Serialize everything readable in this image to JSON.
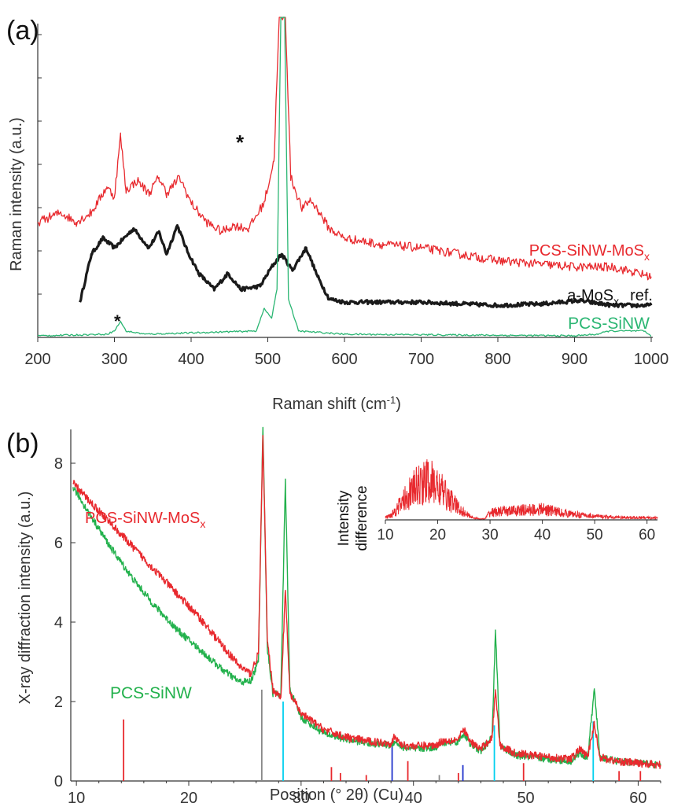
{
  "colors": {
    "red": "#e8292e",
    "black": "#1a1a1a",
    "green": "#2bb673",
    "green_b": "#22b14c",
    "cyan": "#00d0ee",
    "blue": "#2233cc",
    "gray": "#888888",
    "axis": "#333333"
  },
  "chart_data": [
    {
      "id": "a",
      "type": "line",
      "panel_label": "(a)",
      "xlabel": "Raman shift (cm",
      "xlabel_sup": "-1",
      "xlabel_end": ")",
      "ylabel": "Raman intensity (a.u.)",
      "xlim": [
        200,
        1000
      ],
      "ylim": [
        0,
        10
      ],
      "xticks": [
        200,
        300,
        400,
        500,
        600,
        700,
        800,
        900,
        1000
      ],
      "annotations": [
        "*",
        "*"
      ],
      "series": [
        {
          "name": "PCS-SiNW-MoS",
          "name_sub": "x",
          "color": "#e8292e",
          "points": [
            [
              200,
              3.6
            ],
            [
              230,
              3.9
            ],
            [
              250,
              3.6
            ],
            [
              270,
              3.9
            ],
            [
              290,
              4.7
            ],
            [
              300,
              4.4
            ],
            [
              308,
              6.3
            ],
            [
              315,
              4.6
            ],
            [
              330,
              4.9
            ],
            [
              345,
              4.5
            ],
            [
              358,
              5.0
            ],
            [
              368,
              4.5
            ],
            [
              385,
              5.0
            ],
            [
              400,
              4.2
            ],
            [
              420,
              3.6
            ],
            [
              440,
              3.3
            ],
            [
              455,
              3.5
            ],
            [
              475,
              3.4
            ],
            [
              495,
              4.2
            ],
            [
              508,
              5.5
            ],
            [
              515,
              10
            ],
            [
              523,
              10
            ],
            [
              530,
              5.0
            ],
            [
              545,
              4.0
            ],
            [
              555,
              4.3
            ],
            [
              565,
              4.0
            ],
            [
              580,
              3.4
            ],
            [
              600,
              3.1
            ],
            [
              650,
              2.9
            ],
            [
              700,
              2.8
            ],
            [
              750,
              2.6
            ],
            [
              800,
              2.4
            ],
            [
              850,
              2.3
            ],
            [
              900,
              2.2
            ],
            [
              950,
              2.2
            ],
            [
              1000,
              1.9
            ]
          ]
        },
        {
          "name": "a-MoS",
          "name_sub": "x",
          "name_end": "ref.",
          "color": "#1a1a1a",
          "points": [
            [
              255,
              1.1
            ],
            [
              270,
              2.6
            ],
            [
              285,
              3.1
            ],
            [
              300,
              2.8
            ],
            [
              325,
              3.4
            ],
            [
              345,
              2.8
            ],
            [
              358,
              3.3
            ],
            [
              368,
              2.6
            ],
            [
              382,
              3.5
            ],
            [
              395,
              2.7
            ],
            [
              410,
              2.0
            ],
            [
              430,
              1.5
            ],
            [
              448,
              2.0
            ],
            [
              465,
              1.5
            ],
            [
              490,
              1.6
            ],
            [
              505,
              2.2
            ],
            [
              518,
              2.6
            ],
            [
              532,
              2.1
            ],
            [
              550,
              2.8
            ],
            [
              565,
              1.9
            ],
            [
              580,
              1.2
            ],
            [
              600,
              1.1
            ],
            [
              700,
              1.1
            ],
            [
              800,
              1.0
            ],
            [
              860,
              1.05
            ],
            [
              905,
              1.15
            ],
            [
              950,
              1.0
            ],
            [
              1000,
              1.0
            ]
          ]
        },
        {
          "name": "PCS-SiNW",
          "color": "#2bb673",
          "points": [
            [
              200,
              0.05
            ],
            [
              290,
              0.1
            ],
            [
              300,
              0.2
            ],
            [
              308,
              0.5
            ],
            [
              315,
              0.2
            ],
            [
              340,
              0.1
            ],
            [
              485,
              0.2
            ],
            [
              495,
              0.9
            ],
            [
              505,
              0.6
            ],
            [
              512,
              1.5
            ],
            [
              517,
              10
            ],
            [
              522,
              10
            ],
            [
              527,
              1.2
            ],
            [
              540,
              0.2
            ],
            [
              600,
              0.1
            ],
            [
              900,
              0.05
            ],
            [
              930,
              0.1
            ],
            [
              945,
              0.2
            ],
            [
              990,
              0.2
            ],
            [
              1000,
              0.05
            ]
          ]
        }
      ]
    },
    {
      "id": "b",
      "type": "line",
      "panel_label": "(b)",
      "xlabel": "Position (° 2θ) (Cu)",
      "ylabel": "X-ray diffraction intensity (a.u.)",
      "xlim": [
        9.5,
        62
      ],
      "ylim": [
        0,
        9
      ],
      "xticks": [
        10,
        20,
        30,
        40,
        50,
        60
      ],
      "yticks": [
        0,
        2,
        4,
        6,
        8
      ],
      "series": [
        {
          "name": "PCS-SiNW-MoS",
          "name_sub": "x",
          "color": "#e8292e",
          "points": [
            [
              9.7,
              7.5
            ],
            [
              11,
              7.1
            ],
            [
              13,
              6.5
            ],
            [
              15,
              5.9
            ],
            [
              17,
              5.3
            ],
            [
              19,
              4.7
            ],
            [
              21,
              4.1
            ],
            [
              23,
              3.4
            ],
            [
              24.5,
              2.9
            ],
            [
              25.5,
              2.7
            ],
            [
              26.2,
              3.2
            ],
            [
              26.6,
              8.7
            ],
            [
              27,
              3.5
            ],
            [
              27.5,
              2.3
            ],
            [
              28.2,
              2.1
            ],
            [
              28.6,
              4.8
            ],
            [
              29,
              2.2
            ],
            [
              30,
              1.7
            ],
            [
              32,
              1.3
            ],
            [
              34,
              1.1
            ],
            [
              36,
              1.0
            ],
            [
              38,
              0.95
            ],
            [
              38.3,
              1.1
            ],
            [
              39,
              0.9
            ],
            [
              40,
              0.88
            ],
            [
              42,
              0.9
            ],
            [
              42.5,
              1.0
            ],
            [
              44,
              1.05
            ],
            [
              44.5,
              1.3
            ],
            [
              45,
              1.0
            ],
            [
              46,
              0.8
            ],
            [
              47,
              1.1
            ],
            [
              47.3,
              2.3
            ],
            [
              47.7,
              0.9
            ],
            [
              49,
              0.7
            ],
            [
              52,
              0.6
            ],
            [
              54,
              0.55
            ],
            [
              54.8,
              0.8
            ],
            [
              55.5,
              0.6
            ],
            [
              56.1,
              1.45
            ],
            [
              56.6,
              0.6
            ],
            [
              58,
              0.5
            ],
            [
              60,
              0.45
            ],
            [
              62,
              0.4
            ]
          ]
        },
        {
          "name": "PCS-SiNW",
          "color": "#22b14c",
          "points": [
            [
              9.7,
              7.4
            ],
            [
              11,
              6.8
            ],
            [
              13,
              5.9
            ],
            [
              15,
              5.1
            ],
            [
              17,
              4.4
            ],
            [
              19,
              3.8
            ],
            [
              21,
              3.3
            ],
            [
              23,
              2.8
            ],
            [
              24.5,
              2.5
            ],
            [
              25.5,
              2.5
            ],
            [
              26.2,
              3.0
            ],
            [
              26.6,
              8.9
            ],
            [
              27,
              3.3
            ],
            [
              27.5,
              2.2
            ],
            [
              28.2,
              2.2
            ],
            [
              28.6,
              7.6
            ],
            [
              29,
              2.3
            ],
            [
              30,
              1.6
            ],
            [
              32,
              1.2
            ],
            [
              34,
              1.05
            ],
            [
              36,
              0.95
            ],
            [
              38,
              0.9
            ],
            [
              38.3,
              1.0
            ],
            [
              39,
              0.85
            ],
            [
              40,
              0.8
            ],
            [
              42,
              0.85
            ],
            [
              42.5,
              0.95
            ],
            [
              44,
              1.0
            ],
            [
              44.5,
              1.2
            ],
            [
              45,
              0.95
            ],
            [
              46,
              0.75
            ],
            [
              47,
              1.1
            ],
            [
              47.3,
              3.8
            ],
            [
              47.7,
              0.9
            ],
            [
              49,
              0.65
            ],
            [
              52,
              0.55
            ],
            [
              54,
              0.5
            ],
            [
              54.8,
              0.7
            ],
            [
              55.5,
              0.6
            ],
            [
              56.1,
              2.3
            ],
            [
              56.6,
              0.6
            ],
            [
              58,
              0.5
            ],
            [
              60,
              0.45
            ],
            [
              62,
              0.4
            ]
          ]
        }
      ],
      "reference_lines": [
        {
          "x": 14.2,
          "h": 1.55,
          "color": "#e8292e"
        },
        {
          "x": 26.5,
          "h": 2.3,
          "color": "#888888"
        },
        {
          "x": 28.4,
          "h": 2.0,
          "color": "#00d0ee"
        },
        {
          "x": 32.7,
          "h": 0.35,
          "color": "#e8292e"
        },
        {
          "x": 33.5,
          "h": 0.2,
          "color": "#e8292e"
        },
        {
          "x": 35.8,
          "h": 0.15,
          "color": "#e8292e"
        },
        {
          "x": 38.1,
          "h": 0.9,
          "color": "#2233cc"
        },
        {
          "x": 39.5,
          "h": 0.5,
          "color": "#e8292e"
        },
        {
          "x": 42.3,
          "h": 0.15,
          "color": "#888888"
        },
        {
          "x": 44.0,
          "h": 0.2,
          "color": "#e8292e"
        },
        {
          "x": 44.4,
          "h": 0.4,
          "color": "#2233cc"
        },
        {
          "x": 47.2,
          "h": 1.4,
          "color": "#00d0ee"
        },
        {
          "x": 49.8,
          "h": 0.45,
          "color": "#e8292e"
        },
        {
          "x": 56.0,
          "h": 1.5,
          "color": "#00d0ee"
        },
        {
          "x": 58.3,
          "h": 0.25,
          "color": "#e8292e"
        },
        {
          "x": 60.2,
          "h": 0.25,
          "color": "#e8292e"
        }
      ],
      "inset": {
        "type": "line",
        "ylabel_line1": "Intensity",
        "ylabel_line2": "difference",
        "xlim": [
          10,
          62
        ],
        "ylim": [
          0,
          10
        ],
        "xticks": [
          10,
          20,
          30,
          40,
          50,
          60
        ],
        "color": "#e8292e",
        "envelope": [
          [
            10,
            0.5
          ],
          [
            11,
            1.0
          ],
          [
            12,
            2.2
          ],
          [
            13,
            3.5
          ],
          [
            14,
            5.0
          ],
          [
            15,
            6.3
          ],
          [
            16,
            7.2
          ],
          [
            17,
            8.0
          ],
          [
            18,
            8.3
          ],
          [
            19,
            8.0
          ],
          [
            20,
            7.2
          ],
          [
            21,
            6.0
          ],
          [
            22,
            4.8
          ],
          [
            23,
            3.7
          ],
          [
            24,
            2.6
          ],
          [
            25,
            1.6
          ],
          [
            26,
            0.9
          ],
          [
            27,
            0.4
          ],
          [
            28,
            0.2
          ],
          [
            29,
            0.2
          ],
          [
            30,
            1.6
          ],
          [
            32,
            1.8
          ],
          [
            35,
            2.0
          ],
          [
            38,
            2.2
          ],
          [
            40,
            2.3
          ],
          [
            42,
            2.0
          ],
          [
            44,
            1.5
          ],
          [
            46,
            1.2
          ],
          [
            48,
            1.0
          ],
          [
            50,
            0.8
          ],
          [
            53,
            0.6
          ],
          [
            56,
            0.5
          ],
          [
            59,
            0.5
          ],
          [
            62,
            0.4
          ]
        ]
      }
    }
  ]
}
